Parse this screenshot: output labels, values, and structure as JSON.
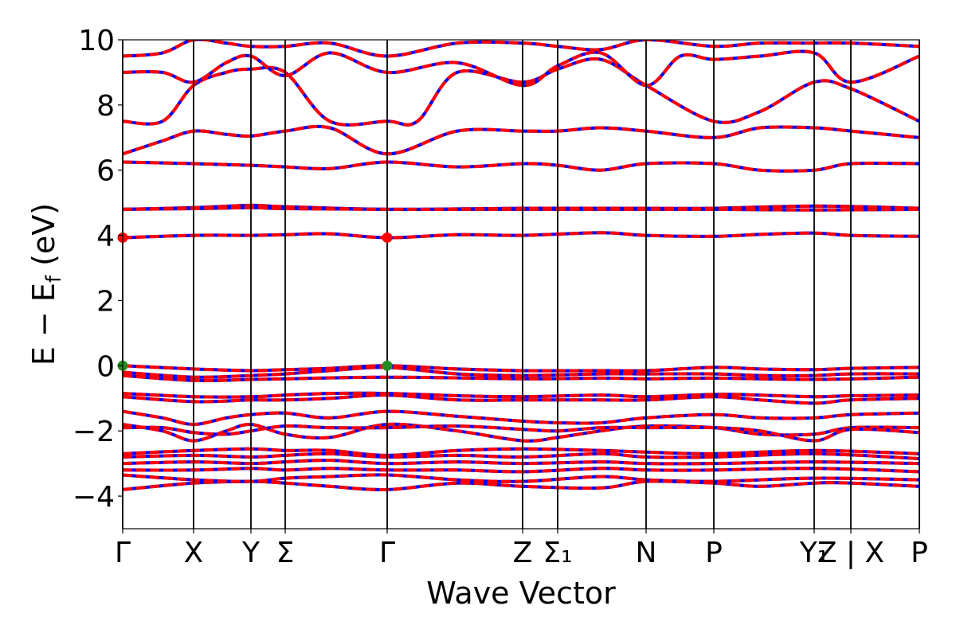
{
  "chart_data": {
    "type": "line",
    "xlabel": "Wave Vector",
    "ylabel_parts": {
      "main": "E − E",
      "sub": "f",
      "unit": " (eV)"
    },
    "ylim": [
      -5,
      10
    ],
    "yticks": [
      -4,
      -2,
      0,
      2,
      4,
      6,
      8,
      10
    ],
    "ytick_labels": [
      "−4",
      "−2",
      "0",
      "2",
      "4",
      "6",
      "8",
      "10"
    ],
    "xlim": [
      0,
      1
    ],
    "kpoints": [
      {
        "label": "Γ",
        "x": 0.0
      },
      {
        "label": "X",
        "x": 0.089
      },
      {
        "label": "Y",
        "x": 0.161
      },
      {
        "label": "Σ",
        "x": 0.204
      },
      {
        "label": "Γ",
        "x": 0.332
      },
      {
        "label": "Z",
        "x": 0.502
      },
      {
        "label": "Σ₁",
        "x": 0.546
      },
      {
        "label": "N",
        "x": 0.657
      },
      {
        "label": "P",
        "x": 0.742
      },
      {
        "label": "Y₁",
        "x": 0.868
      },
      {
        "label": "Z | X",
        "x": 0.914
      },
      {
        "label": "P",
        "x": 1.0
      }
    ],
    "line_style": {
      "color_primary": "#0000ff",
      "color_overlay": "#ff0000",
      "overlay": "dashed"
    },
    "series": [
      {
        "x": [
          0,
          0.05,
          0.089,
          0.13,
          0.161,
          0.204,
          0.26,
          0.332,
          0.42,
          0.502,
          0.546,
          0.6,
          0.657,
          0.742,
          0.8,
          0.868,
          0.914,
          1.0
        ],
        "y": [
          6.5,
          6.9,
          7.2,
          7.1,
          7.05,
          7.2,
          7.3,
          6.5,
          7.2,
          7.2,
          7.2,
          7.3,
          7.2,
          7.0,
          7.3,
          7.3,
          7.2,
          7.0
        ]
      },
      {
        "x": [
          0,
          0.05,
          0.089,
          0.13,
          0.161,
          0.204,
          0.26,
          0.332,
          0.37,
          0.42,
          0.502,
          0.546,
          0.6,
          0.657,
          0.742,
          0.8,
          0.868,
          0.914,
          1.0
        ],
        "y": [
          7.5,
          7.5,
          8.6,
          9.0,
          9.1,
          9.0,
          7.5,
          7.5,
          7.5,
          9.0,
          8.7,
          9.1,
          9.4,
          8.6,
          7.5,
          7.8,
          8.7,
          8.5,
          7.5
        ]
      },
      {
        "x": [
          0,
          0.05,
          0.089,
          0.13,
          0.161,
          0.204,
          0.26,
          0.332,
          0.42,
          0.502,
          0.546,
          0.6,
          0.657,
          0.7,
          0.742,
          0.8,
          0.868,
          0.914,
          1.0
        ],
        "y": [
          9.0,
          9.0,
          8.7,
          9.3,
          9.5,
          8.9,
          9.6,
          9.0,
          9.3,
          8.6,
          9.2,
          9.6,
          8.6,
          9.5,
          9.4,
          9.5,
          9.6,
          8.7,
          9.5
        ]
      },
      {
        "x": [
          0,
          0.05,
          0.089,
          0.13,
          0.161,
          0.204,
          0.26,
          0.332,
          0.42,
          0.502,
          0.546,
          0.6,
          0.657,
          0.742,
          0.8,
          0.868,
          0.914,
          1.0
        ],
        "y": [
          9.5,
          9.6,
          10.0,
          9.9,
          9.8,
          9.8,
          9.9,
          9.5,
          9.9,
          9.9,
          9.8,
          9.7,
          10.0,
          9.8,
          9.9,
          9.9,
          9.9,
          9.8
        ]
      },
      {
        "x": [
          0,
          0.089,
          0.161,
          0.204,
          0.26,
          0.332,
          0.42,
          0.502,
          0.546,
          0.6,
          0.657,
          0.742,
          0.8,
          0.868,
          0.914,
          1.0
        ],
        "y": [
          6.25,
          6.2,
          6.15,
          6.1,
          6.05,
          6.25,
          6.1,
          6.2,
          6.15,
          6.0,
          6.2,
          6.2,
          6.0,
          6.0,
          6.2,
          6.2
        ]
      },
      {
        "x": [
          0,
          0.089,
          0.161,
          0.204,
          0.332,
          0.502,
          0.657,
          0.742,
          0.868,
          1.0
        ],
        "y": [
          4.8,
          4.85,
          4.92,
          4.88,
          4.8,
          4.83,
          4.83,
          4.83,
          4.9,
          4.83
        ]
      },
      {
        "x": [
          0,
          0.089,
          0.161,
          0.204,
          0.332,
          0.502,
          0.657,
          0.742,
          0.868,
          1.0
        ],
        "y": [
          4.8,
          4.82,
          4.85,
          4.82,
          4.8,
          4.8,
          4.8,
          4.8,
          4.78,
          4.8
        ]
      },
      {
        "x": [
          0,
          0.089,
          0.161,
          0.204,
          0.26,
          0.332,
          0.42,
          0.502,
          0.6,
          0.657,
          0.742,
          0.8,
          0.868,
          0.914,
          1.0
        ],
        "y": [
          3.93,
          4.0,
          4.0,
          4.02,
          4.05,
          3.93,
          4.02,
          4.0,
          4.08,
          4.0,
          3.97,
          4.03,
          4.07,
          4.0,
          3.97
        ]
      },
      {
        "x": [
          0,
          0.089,
          0.161,
          0.204,
          0.26,
          0.332,
          0.42,
          0.502,
          0.6,
          0.657,
          0.742,
          0.8,
          0.868,
          0.914,
          1.0
        ],
        "y": [
          0.0,
          -0.1,
          -0.15,
          -0.12,
          -0.08,
          0.0,
          -0.1,
          -0.15,
          -0.15,
          -0.15,
          -0.05,
          -0.1,
          -0.12,
          -0.08,
          -0.05
        ]
      },
      {
        "x": [
          0,
          0.089,
          0.161,
          0.204,
          0.26,
          0.332,
          0.42,
          0.502,
          0.6,
          0.657,
          0.742,
          0.8,
          0.868,
          0.914,
          1.0
        ],
        "y": [
          -0.2,
          -0.35,
          -0.3,
          -0.25,
          -0.15,
          -0.05,
          -0.25,
          -0.3,
          -0.25,
          -0.25,
          -0.25,
          -0.3,
          -0.3,
          -0.25,
          -0.25
        ]
      },
      {
        "x": [
          0,
          0.089,
          0.161,
          0.204,
          0.332,
          0.502,
          0.6,
          0.657,
          0.742,
          0.868,
          1.0
        ],
        "y": [
          -0.3,
          -0.45,
          -0.42,
          -0.4,
          -0.35,
          -0.4,
          -0.38,
          -0.4,
          -0.38,
          -0.42,
          -0.35
        ]
      },
      {
        "x": [
          0,
          0.089,
          0.161,
          0.204,
          0.26,
          0.332,
          0.42,
          0.502,
          0.6,
          0.657,
          0.742,
          0.8,
          0.868,
          0.914,
          1.0
        ],
        "y": [
          -0.85,
          -0.95,
          -0.95,
          -0.9,
          -0.85,
          -0.85,
          -0.92,
          -0.95,
          -0.9,
          -0.95,
          -0.88,
          -0.9,
          -0.95,
          -0.92,
          -0.9
        ]
      },
      {
        "x": [
          0,
          0.089,
          0.161,
          0.204,
          0.26,
          0.332,
          0.42,
          0.502,
          0.6,
          0.657,
          0.742,
          0.8,
          0.868,
          0.914,
          1.0
        ],
        "y": [
          -0.95,
          -1.1,
          -1.05,
          -1.05,
          -1.0,
          -0.9,
          -1.05,
          -1.05,
          -1.05,
          -1.05,
          -0.95,
          -1.05,
          -1.15,
          -1.05,
          -1.0
        ]
      },
      {
        "x": [
          0,
          0.05,
          0.089,
          0.13,
          0.161,
          0.204,
          0.26,
          0.332,
          0.42,
          0.502,
          0.546,
          0.6,
          0.657,
          0.742,
          0.8,
          0.868,
          0.914,
          1.0
        ],
        "y": [
          -1.4,
          -1.6,
          -1.8,
          -1.6,
          -1.5,
          -1.45,
          -1.6,
          -1.4,
          -1.55,
          -1.7,
          -1.75,
          -1.75,
          -1.6,
          -1.5,
          -1.6,
          -1.6,
          -1.5,
          -1.45
        ]
      },
      {
        "x": [
          0,
          0.05,
          0.089,
          0.13,
          0.161,
          0.204,
          0.26,
          0.332,
          0.42,
          0.502,
          0.546,
          0.6,
          0.657,
          0.742,
          0.8,
          0.868,
          0.914,
          1.0
        ],
        "y": [
          -1.8,
          -2.0,
          -2.3,
          -2.0,
          -1.8,
          -2.1,
          -2.2,
          -1.8,
          -2.0,
          -2.3,
          -2.2,
          -2.0,
          -1.85,
          -1.9,
          -2.1,
          -2.1,
          -1.9,
          -1.9
        ]
      },
      {
        "x": [
          0,
          0.05,
          0.089,
          0.13,
          0.161,
          0.204,
          0.26,
          0.332,
          0.42,
          0.502,
          0.546,
          0.6,
          0.657,
          0.742,
          0.8,
          0.868,
          0.914,
          1.0
        ],
        "y": [
          -1.9,
          -1.9,
          -2.05,
          -2.1,
          -2.0,
          -1.85,
          -1.9,
          -1.9,
          -1.85,
          -1.95,
          -2.0,
          -1.9,
          -1.9,
          -1.9,
          -2.0,
          -2.3,
          -1.95,
          -2.05
        ]
      },
      {
        "x": [
          0,
          0.089,
          0.161,
          0.204,
          0.26,
          0.332,
          0.42,
          0.502,
          0.6,
          0.657,
          0.742,
          0.868,
          1.0
        ],
        "y": [
          -2.7,
          -2.6,
          -2.55,
          -2.6,
          -2.6,
          -2.75,
          -2.6,
          -2.55,
          -2.6,
          -2.65,
          -2.7,
          -2.6,
          -2.7
        ]
      },
      {
        "x": [
          0,
          0.089,
          0.161,
          0.204,
          0.26,
          0.332,
          0.42,
          0.502,
          0.6,
          0.657,
          0.742,
          0.868,
          1.0
        ],
        "y": [
          -2.8,
          -2.75,
          -2.8,
          -2.75,
          -2.7,
          -2.8,
          -2.75,
          -2.8,
          -2.7,
          -2.8,
          -2.8,
          -2.7,
          -2.85
        ]
      },
      {
        "x": [
          0,
          0.089,
          0.161,
          0.204,
          0.26,
          0.332,
          0.42,
          0.502,
          0.6,
          0.657,
          0.742,
          0.868,
          1.0
        ],
        "y": [
          -3.0,
          -2.95,
          -3.0,
          -2.95,
          -2.9,
          -3.0,
          -2.95,
          -3.0,
          -2.95,
          -3.0,
          -3.0,
          -2.95,
          -3.0
        ]
      },
      {
        "x": [
          0,
          0.089,
          0.161,
          0.204,
          0.26,
          0.332,
          0.42,
          0.502,
          0.6,
          0.657,
          0.742,
          0.868,
          1.0
        ],
        "y": [
          -3.2,
          -3.2,
          -3.15,
          -3.2,
          -3.15,
          -3.2,
          -3.2,
          -3.25,
          -3.15,
          -3.2,
          -3.2,
          -3.15,
          -3.25
        ]
      },
      {
        "x": [
          0,
          0.089,
          0.161,
          0.204,
          0.26,
          0.332,
          0.42,
          0.502,
          0.6,
          0.657,
          0.742,
          0.868,
          1.0
        ],
        "y": [
          -3.35,
          -3.5,
          -3.55,
          -3.45,
          -3.4,
          -3.35,
          -3.5,
          -3.55,
          -3.4,
          -3.5,
          -3.55,
          -3.45,
          -3.5
        ]
      },
      {
        "x": [
          0,
          0.089,
          0.161,
          0.204,
          0.26,
          0.332,
          0.42,
          0.502,
          0.6,
          0.657,
          0.742,
          0.8,
          0.868,
          0.914,
          1.0
        ],
        "y": [
          -3.8,
          -3.6,
          -3.55,
          -3.6,
          -3.7,
          -3.8,
          -3.6,
          -3.7,
          -3.75,
          -3.55,
          -3.6,
          -3.7,
          -3.6,
          -3.6,
          -3.7
        ]
      }
    ],
    "markers": [
      {
        "x": 0.0,
        "y": 3.93,
        "color": "#ff0000"
      },
      {
        "x": 0.332,
        "y": 3.93,
        "color": "#ff0000"
      },
      {
        "x": 0.0,
        "y": 0.0,
        "color": "#228b22"
      },
      {
        "x": 0.332,
        "y": 0.0,
        "color": "#228b22"
      }
    ]
  }
}
